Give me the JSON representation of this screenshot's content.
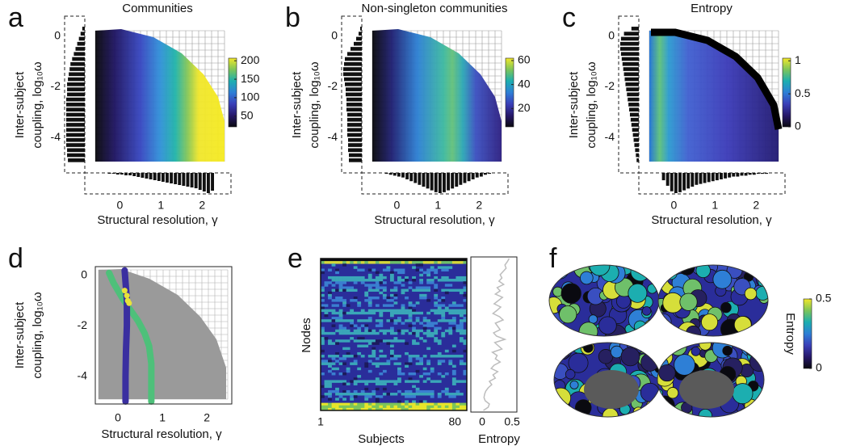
{
  "chart_data": [
    {
      "type": "heatmap-scatter",
      "label": "a",
      "title": "Communities",
      "xlabel": "Structural resolution, γ",
      "ylabel": [
        "Inter-subject",
        "coupling, log₁₀ω"
      ],
      "xlim": [
        -0.85,
        2.7
      ],
      "ylim": [
        -5.4,
        0.6
      ],
      "xticks": [
        0,
        1,
        2
      ],
      "yticks": [
        0,
        -2,
        -4
      ],
      "colorbar": {
        "clim": [
          21,
          207
        ],
        "ticks": [
          50,
          100,
          150,
          200
        ],
        "colormap": [
          "#0a0a10",
          "#26186a",
          "#3a3fb8",
          "#2e7fd6",
          "#1cae b0",
          "#7cc55a",
          "#f2e72a"
        ]
      },
      "y_hist": {
        "bins": [
          -5,
          -4.8,
          -4.6,
          -4.4,
          -4.2,
          -4,
          -3.8,
          -3.6,
          -3.4,
          -3.2,
          -3,
          -2.8,
          -2.6,
          -2.4,
          -2.2,
          -2,
          -1.8,
          -1.6,
          -1.4,
          -1.2,
          -1,
          -0.8,
          -0.6,
          -0.4,
          -0.2,
          0,
          0.2,
          0.4
        ],
        "counts": [
          20,
          21,
          21,
          22,
          22,
          22,
          22,
          22,
          22,
          22,
          22,
          22,
          22,
          21,
          21,
          21,
          20,
          19,
          18,
          17,
          15,
          13,
          11,
          9,
          7,
          5,
          3
        ]
      },
      "x_hist": {
        "bins": [
          -0.3,
          -0.2,
          -0.1,
          0,
          0.1,
          0.2,
          0.3,
          0.4,
          0.5,
          0.6,
          0.7,
          0.8,
          0.9,
          1,
          1.1,
          1.2,
          1.3,
          1.4,
          1.5,
          1.6,
          1.7,
          1.8,
          1.9,
          2,
          2.1,
          2.2,
          2.3
        ],
        "counts": [
          1,
          1,
          2,
          2,
          3,
          3,
          4,
          5,
          6,
          7,
          8,
          9,
          10,
          11,
          12,
          13,
          14,
          15,
          16,
          17,
          18,
          19,
          21,
          23,
          25,
          22
        ]
      }
    },
    {
      "type": "heatmap-scatter",
      "label": "b",
      "title": "Non-singleton communities",
      "xlabel": "Structural resolution, γ",
      "ylabel": [
        "Inter-subject",
        "coupling, log₁₀ω"
      ],
      "xlim": [
        -0.85,
        2.7
      ],
      "ylim": [
        -5.4,
        0.6
      ],
      "xticks": [
        0,
        1,
        2
      ],
      "yticks": [
        0,
        -2,
        -4
      ],
      "colorbar": {
        "clim": [
          4.7,
          62
        ],
        "ticks": [
          20,
          40,
          60
        ],
        "colormap": [
          "#0a0a10",
          "#26186a",
          "#3a3fb8",
          "#2e7fd6",
          "#1caeb0",
          "#7cc55a",
          "#f2e72a"
        ]
      },
      "y_hist": {
        "bins": [
          -5,
          -4.8,
          -4.6,
          -4.4,
          -4.2,
          -4,
          -3.8,
          -3.6,
          -3.4,
          -3.2,
          -3,
          -2.8,
          -2.6,
          -2.4,
          -2.2,
          -2,
          -1.8,
          -1.6,
          -1.4,
          -1.2,
          -1,
          -0.8,
          -0.6,
          -0.4,
          -0.2,
          0,
          0.2,
          0.4
        ],
        "counts": [
          16,
          16,
          17,
          17,
          17,
          18,
          18,
          18,
          18,
          18,
          19,
          19,
          19,
          20,
          20,
          21,
          22,
          23,
          23,
          22,
          21,
          18,
          14,
          10,
          7,
          4,
          2
        ]
      },
      "x_hist": {
        "bins": [
          -0.3,
          -0.2,
          -0.1,
          0,
          0.1,
          0.2,
          0.3,
          0.4,
          0.5,
          0.6,
          0.7,
          0.8,
          0.9,
          1,
          1.1,
          1.2,
          1.3,
          1.4,
          1.5,
          1.6,
          1.7,
          1.8,
          1.9,
          2,
          2.1,
          2.2,
          2.3
        ],
        "counts": [
          1,
          2,
          3,
          4,
          5,
          7,
          9,
          11,
          13,
          15,
          17,
          19,
          21,
          22,
          21,
          19,
          17,
          15,
          13,
          11,
          9,
          7,
          5,
          4,
          2,
          1
        ]
      }
    },
    {
      "type": "heatmap-scatter",
      "label": "c",
      "title": "Entropy",
      "xlabel": "Structural resolution, γ",
      "ylabel": [
        "Inter-subject",
        "coupling, log₁₀ω"
      ],
      "xlim": [
        -0.85,
        2.7
      ],
      "ylim": [
        -5.4,
        0.6
      ],
      "xticks": [
        0,
        1,
        2
      ],
      "yticks": [
        0,
        -2,
        -4
      ],
      "colorbar": {
        "clim": [
          0,
          1.04
        ],
        "ticks": [
          0,
          0.5,
          1
        ],
        "colormap": [
          "#0a0a10",
          "#26186a",
          "#3a3fb8",
          "#2e7fd6",
          "#1caeb0",
          "#7cc55a",
          "#f2e72a"
        ]
      },
      "y_hist": {
        "bins": [
          -5,
          -4.8,
          -4.6,
          -4.4,
          -4.2,
          -4,
          -3.8,
          -3.6,
          -3.4,
          -3.2,
          -3,
          -2.8,
          -2.6,
          -2.4,
          -2.2,
          -2,
          -1.8,
          -1.6,
          -1.4,
          -1.2,
          -1,
          -0.8,
          -0.6,
          -0.4,
          -0.2,
          0,
          0.2,
          0.4
        ],
        "counts": [
          3,
          4,
          5,
          6,
          7,
          8,
          9,
          10,
          11,
          12,
          13,
          14,
          15,
          16,
          17,
          18,
          19,
          20,
          21,
          22,
          23,
          24,
          25,
          25,
          24,
          20,
          10
        ]
      },
      "x_hist": {
        "bins": [
          -0.3,
          -0.2,
          -0.1,
          0,
          0.1,
          0.2,
          0.3,
          0.4,
          0.5,
          0.6,
          0.7,
          0.8,
          0.9,
          1,
          1.1,
          1.2,
          1.3,
          1.4,
          1.5,
          1.6,
          1.7,
          1.8,
          1.9,
          2,
          2.1,
          2.2,
          2.3
        ],
        "counts": [
          8,
          14,
          20,
          22,
          21,
          19,
          17,
          15,
          13,
          12,
          11,
          10,
          9,
          8,
          7,
          6,
          5,
          4,
          4,
          3,
          3,
          2,
          2,
          1,
          1,
          1
        ]
      }
    },
    {
      "type": "paths",
      "label": "d",
      "xlabel": "Structural resolution, γ",
      "ylabel": [
        "Inter-subject",
        "coupling, log₁₀ω"
      ],
      "xlim": [
        -0.51,
        2.56
      ],
      "ylim": [
        -5.1,
        0.35
      ],
      "xticks": [
        0,
        1,
        2
      ],
      "yticks": [
        0,
        -2,
        -4
      ],
      "series": [
        {
          "style": "line",
          "color": "#4ec07a",
          "x": [
            -0.2,
            -0.1,
            0,
            0.1,
            0.25,
            0.45,
            0.6,
            0.7,
            0.75,
            0.75,
            0.75
          ],
          "y": [
            0.1,
            -0.3,
            -0.6,
            -0.9,
            -1.3,
            -1.8,
            -2.3,
            -2.8,
            -3.5,
            -4.2,
            -5
          ]
        },
        {
          "style": "line",
          "color": "#3a2fa0",
          "x": [
            0.15,
            0.18,
            0.2,
            0.2,
            0.18,
            0.17,
            0.17
          ],
          "y": [
            0.2,
            -0.5,
            -1,
            -2,
            -3,
            -4,
            -5
          ]
        },
        {
          "style": "points",
          "color": "#e8e23a",
          "x": [
            0.15,
            0.2,
            0.22,
            0.25
          ],
          "y": [
            -0.6,
            -0.8,
            -1,
            -1.1
          ]
        }
      ]
    },
    {
      "type": "raster",
      "label": "e",
      "xlabel": "Subjects",
      "ylabel": "Nodes",
      "xlim": [
        1,
        87
      ],
      "xticks": [
        1,
        80
      ],
      "entropy": {
        "xlabel": "Entropy",
        "xlim": [
          -0.19,
          0.58
        ],
        "xticks": [
          0,
          0.5
        ],
        "color": "#bdbdbd",
        "values": [
          0.45,
          0.42,
          0.38,
          0.4,
          0.35,
          0.3,
          0.33,
          0.28,
          0.36,
          0.25,
          0.3,
          0.22,
          0.34,
          0.27,
          0.2,
          0.31,
          0.25,
          0.18,
          0.29,
          0.35,
          0.22,
          0.26,
          0.3,
          0.19,
          0.24,
          0.38,
          0.21,
          0.27,
          0.33,
          0.17,
          0.25,
          0.22,
          0.3,
          0.2,
          0.15,
          0.26,
          0.18,
          0.22,
          0.12,
          0.16,
          0.1,
          0.06,
          0.04,
          0.03,
          0.05,
          0.12,
          0.1,
          0.02
        ]
      }
    },
    {
      "type": "brain",
      "label": "f",
      "colorbar": {
        "label": "Entropy",
        "clim": [
          0,
          0.5
        ],
        "ticks": [
          0,
          0.5
        ],
        "colormap": [
          "#0a0a10",
          "#26186a",
          "#3a3fb8",
          "#2e7fd6",
          "#1caeb0",
          "#7cc55a",
          "#f2e72a"
        ]
      }
    }
  ]
}
